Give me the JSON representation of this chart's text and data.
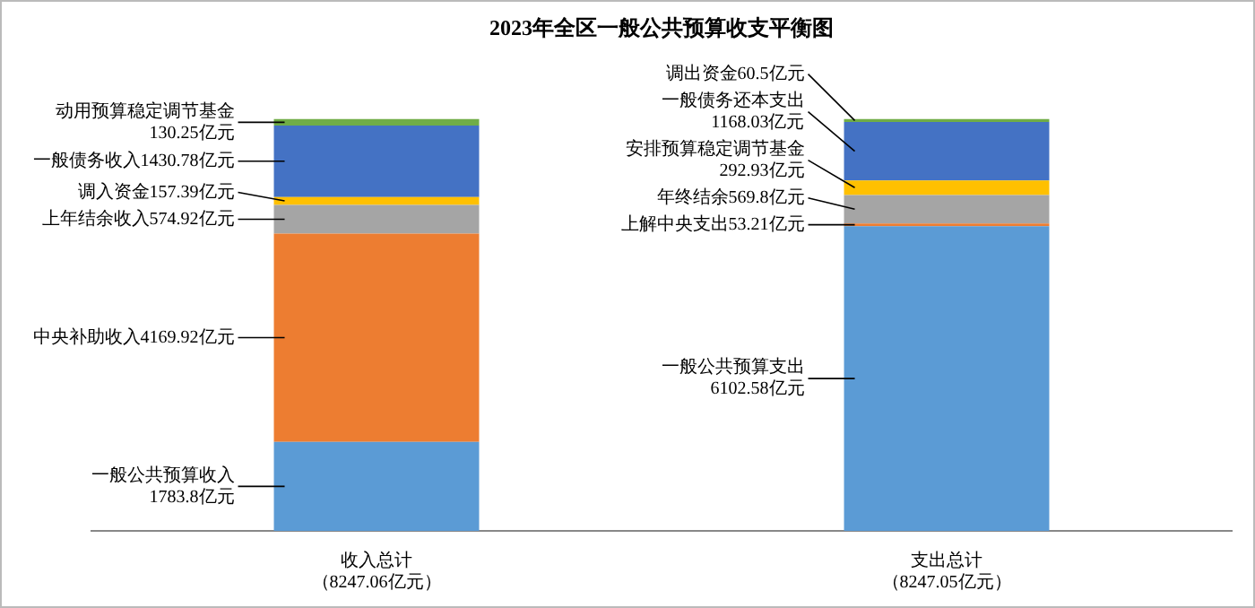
{
  "chart_data": {
    "type": "bar",
    "title": "2023年全区一般公共预算收支平衡图",
    "categories": [
      "收入总计（8247.06亿元）",
      "支出总计（8247.05亿元）"
    ],
    "stacked": true,
    "legend": false,
    "grid": false,
    "tick_labels": "x",
    "series": [
      {
        "color": "#5b9bd5",
        "values": [
          1783.8,
          6102.58
        ],
        "value_labels": [
          "一般公共预算收入1783.8亿元",
          "一般公共预算支出6102.58亿元"
        ]
      },
      {
        "color": "#ed7d31",
        "values": [
          4169.92,
          53.21
        ],
        "value_labels": [
          "中央补助收入4169.92亿元",
          "上解中央支出53.21亿元"
        ]
      },
      {
        "color": "#a5a5a5",
        "values": [
          574.92,
          569.8
        ],
        "value_labels": [
          "上年结余收入574.92亿元",
          "年终结余569.8亿元"
        ]
      },
      {
        "color": "#ffc000",
        "values": [
          157.39,
          292.93
        ],
        "value_labels": [
          "调入资金157.39亿元",
          "安排预算稳定调节基金292.93亿元"
        ]
      },
      {
        "color": "#4472c4",
        "values": [
          1430.78,
          1168.03
        ],
        "value_labels": [
          "一般债务收入1430.78亿元",
          "一般债务还本支出1168.03亿元"
        ]
      },
      {
        "color": "#70ad47",
        "values": [
          130.25,
          60.5
        ],
        "value_labels": [
          "动用预算稳定调节基金130.25亿元",
          "调出资金60.5亿元"
        ]
      }
    ]
  }
}
